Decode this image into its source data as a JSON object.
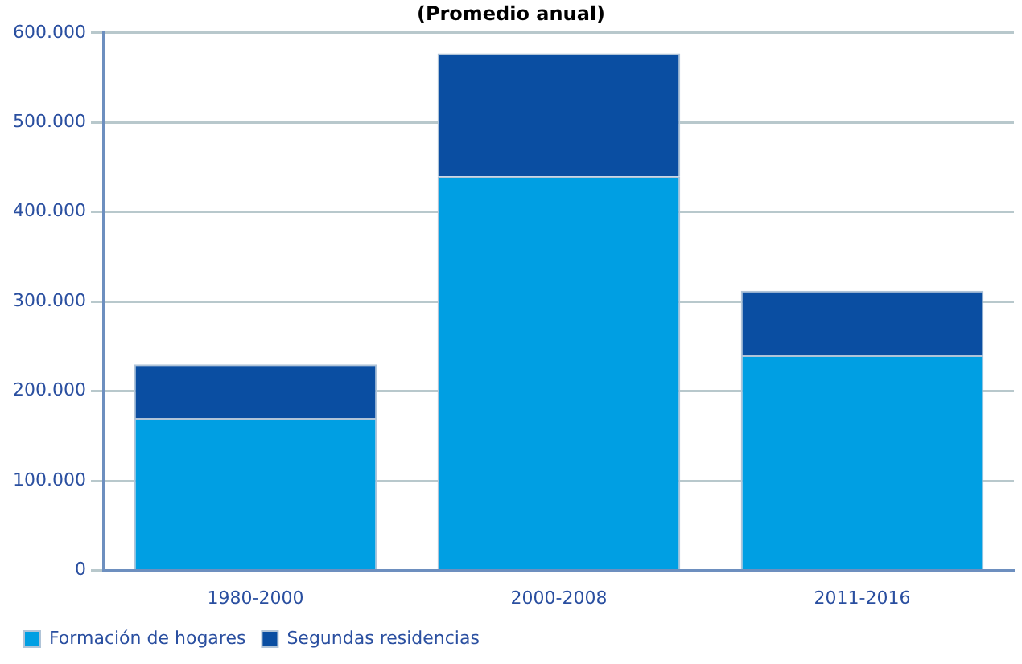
{
  "chart_data": {
    "type": "bar",
    "title": "(Promedio anual)",
    "categories": [
      "1980-2000",
      "2000-2008",
      "2011-2016"
    ],
    "stacked": true,
    "series": [
      {
        "name": "Formación de hogares",
        "color": "#009fe3",
        "values": [
          170000,
          440000,
          240000
        ]
      },
      {
        "name": "Segundas residencias",
        "color": "#0a4ea2",
        "values": [
          60000,
          137000,
          72000
        ]
      }
    ],
    "ylim": [
      0,
      600000
    ],
    "yticks": [
      {
        "value": 0,
        "label": "0"
      },
      {
        "value": 100000,
        "label": "100.000"
      },
      {
        "value": 200000,
        "label": "200.000"
      },
      {
        "value": 300000,
        "label": "300.000"
      },
      {
        "value": 400000,
        "label": "400.000"
      },
      {
        "value": 500000,
        "label": "500.000"
      },
      {
        "value": 600000,
        "label": "600.000"
      }
    ],
    "grid": "y",
    "legend": "bottom left"
  }
}
